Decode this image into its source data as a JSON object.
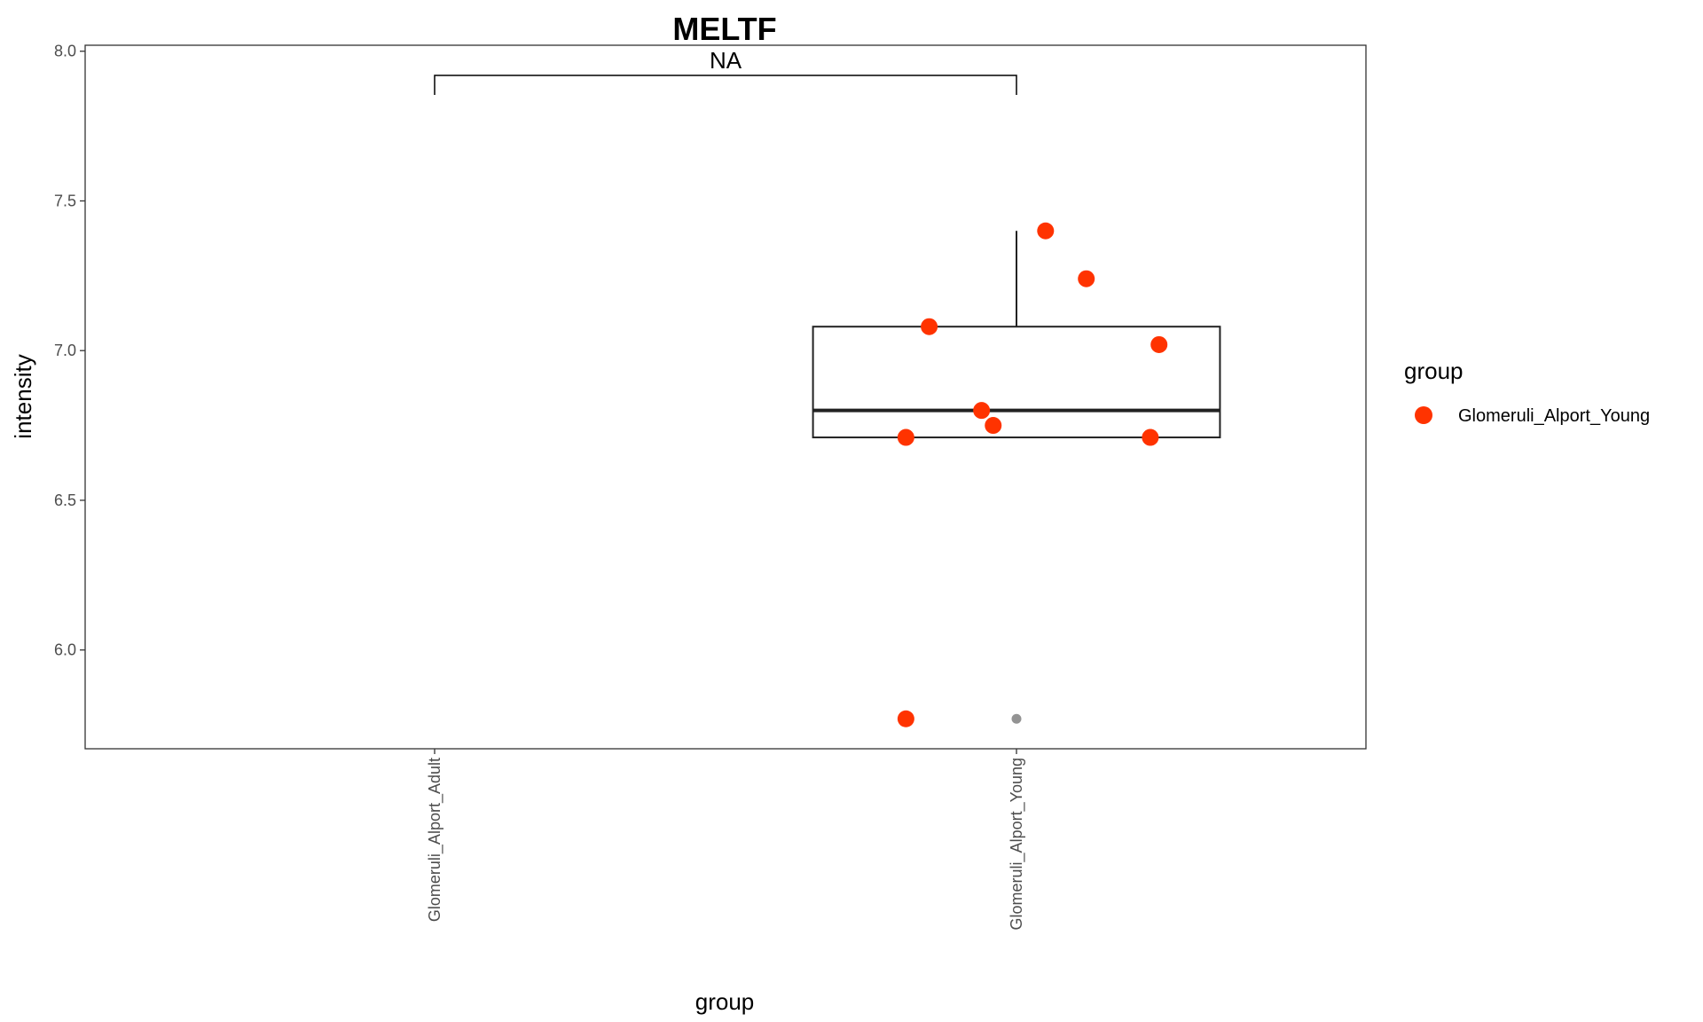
{
  "chart_data": {
    "type": "box",
    "title": "MELTF",
    "xlabel": "group",
    "ylabel": "intensity",
    "ylim": [
      5.67,
      8.02
    ],
    "yticks": [
      6.0,
      6.5,
      7.0,
      7.5,
      8.0
    ],
    "ytick_labels": [
      "6.0",
      "6.5",
      "7.0",
      "7.5",
      "8.0"
    ],
    "categories": [
      "Glomeruli_Alport_Adult",
      "Glomeruli_Alport_Young"
    ],
    "boxes": [
      {
        "category": "Glomeruli_Alport_Young",
        "q1": 6.71,
        "median": 6.8,
        "q3": 7.08,
        "whisker_low": 6.71,
        "whisker_high": 7.4,
        "outliers": [
          5.77
        ]
      }
    ],
    "points": [
      {
        "category": "Glomeruli_Alport_Young",
        "jitter": -0.19,
        "y": 6.71
      },
      {
        "category": "Glomeruli_Alport_Young",
        "jitter": -0.15,
        "y": 7.08
      },
      {
        "category": "Glomeruli_Alport_Young",
        "jitter": -0.06,
        "y": 6.8
      },
      {
        "category": "Glomeruli_Alport_Young",
        "jitter": -0.04,
        "y": 6.75
      },
      {
        "category": "Glomeruli_Alport_Young",
        "jitter": 0.05,
        "y": 7.4
      },
      {
        "category": "Glomeruli_Alport_Young",
        "jitter": 0.12,
        "y": 7.24
      },
      {
        "category": "Glomeruli_Alport_Young",
        "jitter": 0.23,
        "y": 6.71
      },
      {
        "category": "Glomeruli_Alport_Young",
        "jitter": 0.245,
        "y": 7.02
      },
      {
        "category": "Glomeruli_Alport_Young",
        "jitter": -0.19,
        "y": 5.77
      }
    ],
    "comparison": {
      "from": "Glomeruli_Alport_Adult",
      "to": "Glomeruli_Alport_Young",
      "label": "NA"
    },
    "legend": {
      "title": "group",
      "position": "right",
      "entries": [
        {
          "label": "Glomeruli_Alport_Young",
          "color": "#ff3300"
        }
      ]
    },
    "colors": {
      "point": "#ff3300",
      "outlier": "#808080",
      "box": "#222222"
    },
    "grid": false
  }
}
